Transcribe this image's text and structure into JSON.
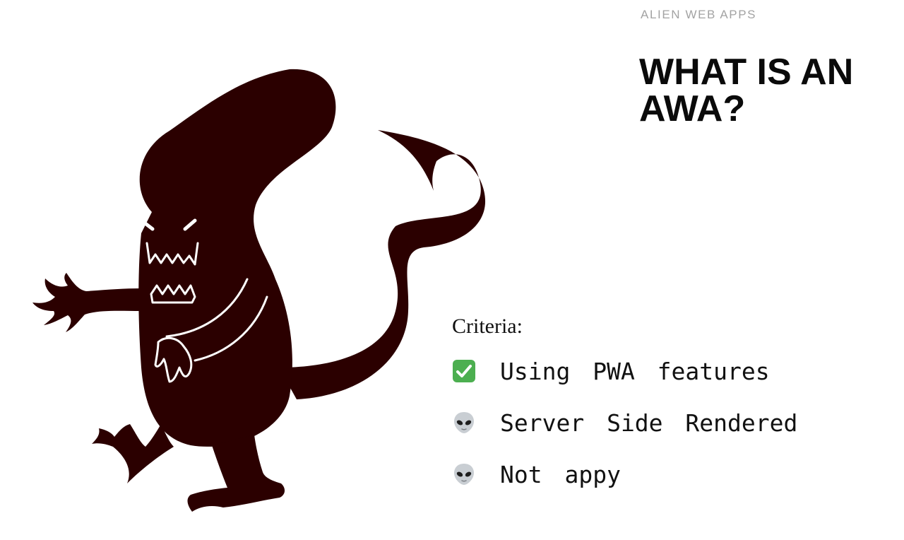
{
  "header": {
    "kicker": "ALIEN WEB APPS",
    "title": "WHAT IS AN AWA?"
  },
  "illustration": {
    "icon": "alien-creature-icon",
    "color": "#2b0000"
  },
  "criteria": {
    "label": "Criteria:",
    "items": [
      {
        "icon": "check-mark-icon",
        "text": "Using PWA features"
      },
      {
        "icon": "alien-face-icon",
        "text": "Server Side Rendered"
      },
      {
        "icon": "alien-face-icon",
        "text": "Not appy"
      }
    ]
  },
  "colors": {
    "background": "#ffffff",
    "text": "#111111",
    "kicker": "#a3a3a3",
    "check_green": "#4caf50"
  }
}
